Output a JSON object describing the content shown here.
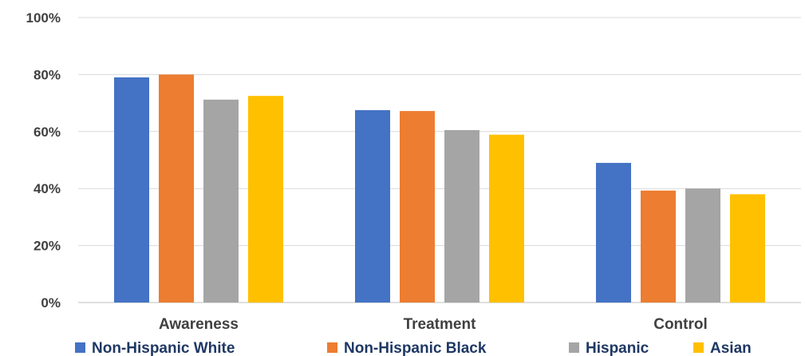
{
  "chart_data": {
    "type": "bar",
    "categories": [
      "Awareness",
      "Treatment",
      "Control"
    ],
    "series": [
      {
        "name": "Non-Hispanic White",
        "color": "#4472C4",
        "values": [
          79,
          67.5,
          49
        ]
      },
      {
        "name": "Non-Hispanic Black",
        "color": "#ED7D31",
        "values": [
          80,
          67.2,
          39.3
        ]
      },
      {
        "name": "Hispanic",
        "color": "#A5A5A5",
        "values": [
          71.2,
          60.5,
          40
        ]
      },
      {
        "name": "Asian",
        "color": "#FFC000",
        "values": [
          72.5,
          58.9,
          38
        ]
      }
    ],
    "ylim": [
      0,
      100
    ],
    "yticks": [
      0,
      20,
      40,
      60,
      80,
      100
    ],
    "ytick_labels": [
      "0%",
      "20%",
      "40%",
      "60%",
      "80%",
      "100%"
    ],
    "grid": true,
    "legend_position": "bottom"
  }
}
